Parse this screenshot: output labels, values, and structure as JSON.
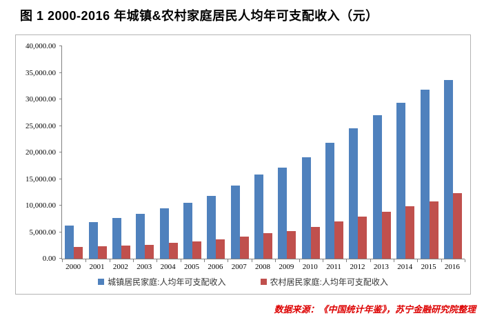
{
  "title": "图 1  2000-2016 年城镇&农村家庭居民人均年可支配收入（元）",
  "source_note": "数据来源：《中国统计年鉴》，苏宁金融研究院整理",
  "colors": {
    "urban_bar": "#4F81BD",
    "rural_bar": "#C0504D",
    "axis": "#808080",
    "frame_border": "#b3b3b3",
    "source_text": "#dd0000"
  },
  "chart_data": {
    "type": "bar",
    "title": "图 1  2000-2016 年城镇&农村家庭居民人均年可支配收入（元）",
    "xlabel": "",
    "ylabel": "",
    "categories": [
      "2000",
      "2001",
      "2002",
      "2003",
      "2004",
      "2005",
      "2006",
      "2007",
      "2008",
      "2009",
      "2010",
      "2011",
      "2012",
      "2013",
      "2014",
      "2015",
      "2016"
    ],
    "series": [
      {
        "name": "城镇居民家庭:人均年可支配收入",
        "color": "#4F81BD",
        "values": [
          6280.0,
          6859.6,
          7702.8,
          8472.2,
          9421.6,
          10493.0,
          11759.5,
          13785.8,
          15780.8,
          17174.7,
          19109.4,
          21809.8,
          24564.7,
          26955.1,
          29381.0,
          31790.3,
          33616.2
        ]
      },
      {
        "name": "农村居民家庭:人均年可支配收入",
        "color": "#C0504D",
        "values": [
          2253.4,
          2366.4,
          2475.6,
          2622.2,
          2936.4,
          3254.9,
          3587.0,
          4140.4,
          4760.6,
          5153.2,
          5919.0,
          6977.3,
          7916.6,
          8895.9,
          9892.0,
          10772.0,
          12363.4
        ]
      }
    ],
    "ylim": [
      0,
      40000
    ],
    "ytick_step": 5000,
    "ytick_labels": [
      "0.00",
      "5,000.00",
      "10,000.00",
      "15,000.00",
      "20,000.00",
      "25,000.00",
      "30,000.00",
      "35,000.00",
      "40,000.00"
    ],
    "grid": false,
    "legend_position": "bottom"
  }
}
